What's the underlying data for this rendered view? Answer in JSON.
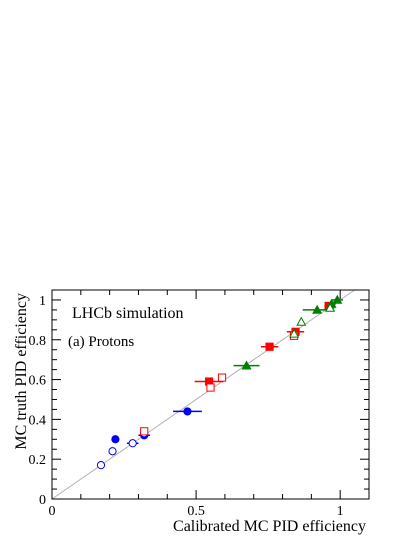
{
  "chart_data": {
    "type": "scatter",
    "xlabel": "Calibrated MC PID efficiency",
    "ylabel": "MC truth PID efficiency",
    "xlim": [
      0,
      1.1
    ],
    "ylim": [
      0,
      1.05
    ],
    "x_ticks": [
      "0",
      "0.5",
      "1"
    ],
    "y_ticks": [
      "0",
      "0.2",
      "0.4",
      "0.6",
      "0.8",
      "1"
    ],
    "annotations": [
      "LHCb simulation",
      "(a) Protons"
    ],
    "diagonal": true,
    "series": [
      {
        "color": "#0000ff",
        "marker": "circle",
        "filled": true,
        "points": [
          {
            "x": 0.22,
            "y": 0.3
          },
          {
            "x": 0.32,
            "y": 0.32,
            "xerr": 0.02
          },
          {
            "x": 0.47,
            "y": 0.44,
            "xerr": 0.05
          }
        ]
      },
      {
        "color": "#0000ff",
        "marker": "circle",
        "filled": false,
        "points": [
          {
            "x": 0.17,
            "y": 0.17
          },
          {
            "x": 0.21,
            "y": 0.24
          },
          {
            "x": 0.28,
            "y": 0.28,
            "xerr": 0.02
          },
          {
            "x": 0.32,
            "y": 0.33
          }
        ]
      },
      {
        "color": "#ff0000",
        "marker": "square",
        "filled": true,
        "points": [
          {
            "x": 0.545,
            "y": 0.59,
            "xerr": 0.05
          },
          {
            "x": 0.755,
            "y": 0.765,
            "xerr": 0.03
          },
          {
            "x": 0.845,
            "y": 0.84,
            "xerr": 0.03
          },
          {
            "x": 0.96,
            "y": 0.97,
            "xerr": 0.015
          }
        ]
      },
      {
        "color": "#ff0000",
        "marker": "square",
        "filled": false,
        "points": [
          {
            "x": 0.32,
            "y": 0.34
          },
          {
            "x": 0.55,
            "y": 0.56
          },
          {
            "x": 0.59,
            "y": 0.61
          },
          {
            "x": 0.84,
            "y": 0.82
          }
        ]
      },
      {
        "color": "#008000",
        "marker": "triangle",
        "filled": true,
        "points": [
          {
            "x": 0.675,
            "y": 0.67,
            "xerr": 0.045
          },
          {
            "x": 0.92,
            "y": 0.95,
            "xerr": 0.05
          },
          {
            "x": 0.97,
            "y": 0.98,
            "xerr": 0.015
          },
          {
            "x": 0.99,
            "y": 1.0,
            "xerr": 0.02
          }
        ]
      },
      {
        "color": "#008000",
        "marker": "triangle",
        "filled": false,
        "points": [
          {
            "x": 0.84,
            "y": 0.83
          },
          {
            "x": 0.865,
            "y": 0.89
          },
          {
            "x": 0.965,
            "y": 0.96,
            "xerr": 0.015
          }
        ]
      }
    ]
  }
}
